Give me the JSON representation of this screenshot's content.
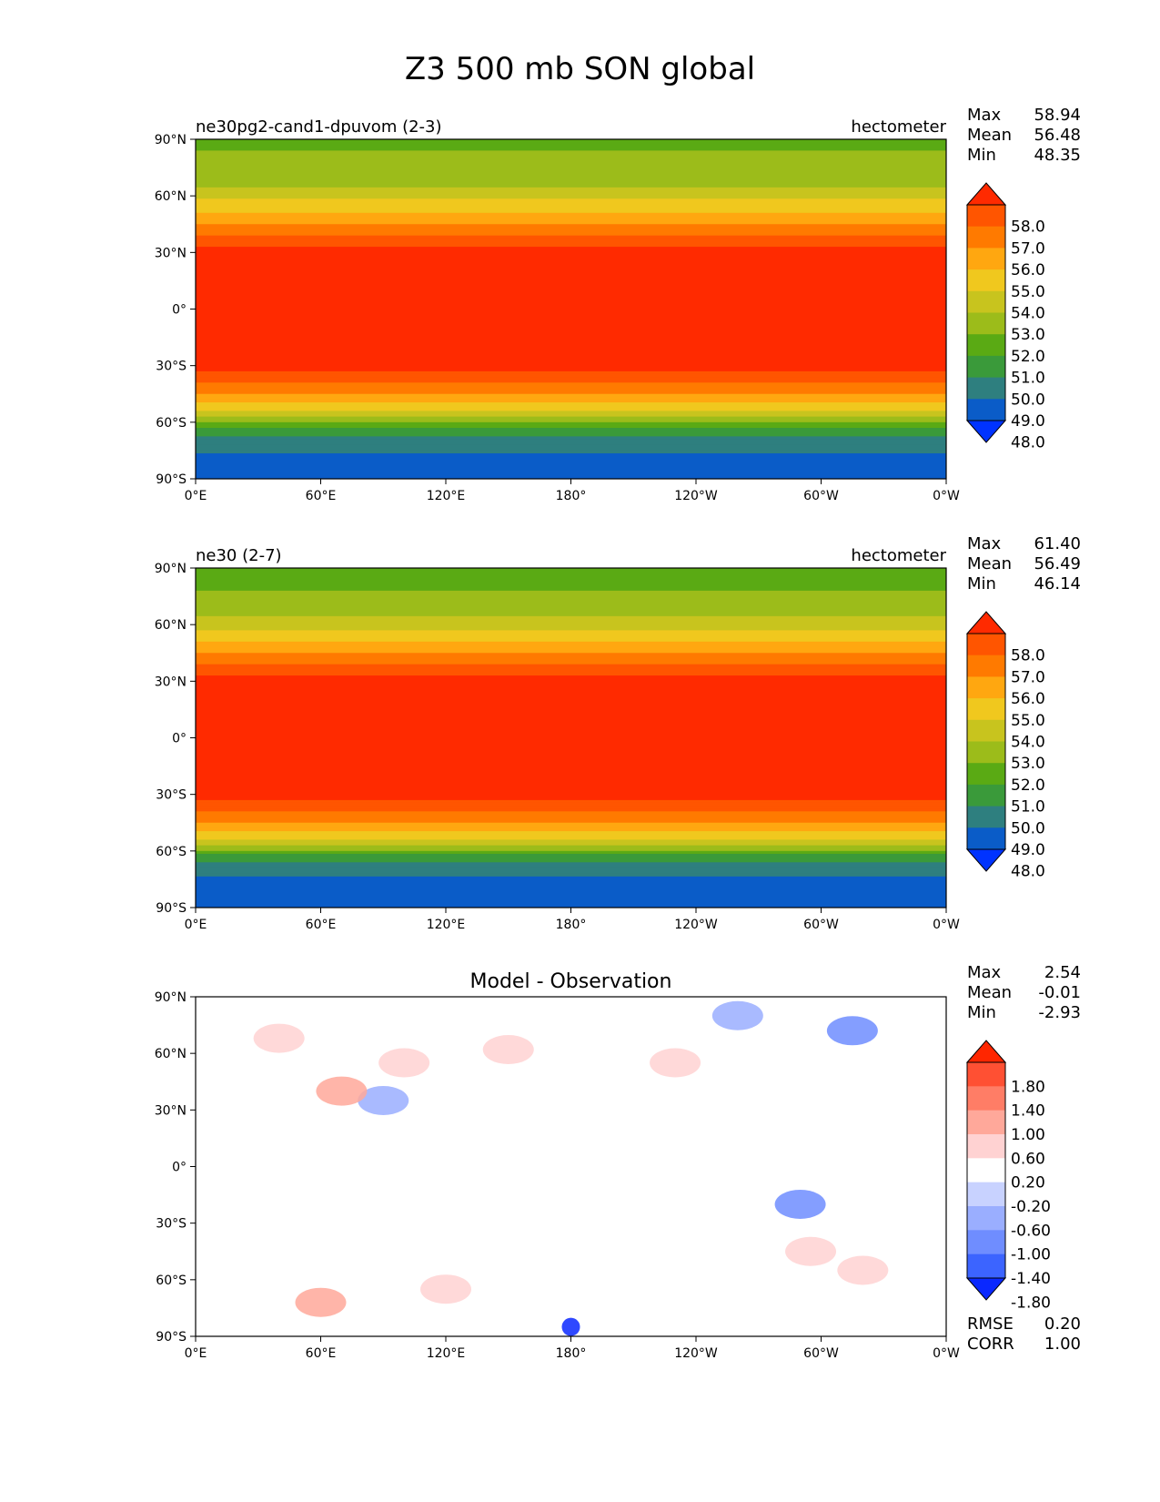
{
  "title": "Z3 500 mb SON global",
  "longitude_ticks": [
    "0°E",
    "60°E",
    "120°E",
    "180°",
    "120°W",
    "60°W",
    "0°W"
  ],
  "latitude_ticks": [
    "90°N",
    "60°N",
    "30°N",
    "0°",
    "30°S",
    "60°S",
    "90°S"
  ],
  "colors": {
    "model_levels": [
      "#0033ff",
      "#0a5cc8",
      "#2e7f7f",
      "#3a9a3a",
      "#5aaa14",
      "#9cbc1a",
      "#c8c41e",
      "#f0c81e",
      "#ffa710",
      "#ff7a00",
      "#ff5500",
      "#ff2a00"
    ],
    "diff_levels": [
      "#0a28ff",
      "#3c64ff",
      "#6f8dff",
      "#9aaeff",
      "#c8d2ff",
      "#ffffff",
      "#ffd2d2",
      "#ffa89a",
      "#ff7d66",
      "#ff5033",
      "#ff2600"
    ]
  },
  "chart_data": [
    {
      "type": "heatmap",
      "title": "ne30pg2-cand1-dpuvom (2-3)",
      "units": "hectometer",
      "xlim": [
        0,
        360
      ],
      "ylim": [
        -90,
        90
      ],
      "stats": [
        {
          "label": "Max",
          "value": "58.94"
        },
        {
          "label": "Mean",
          "value": "56.48"
        },
        {
          "label": "Min",
          "value": "48.35"
        }
      ],
      "colorbar": {
        "levels": [
          48.0,
          49.0,
          50.0,
          51.0,
          52.0,
          53.0,
          54.0,
          55.0,
          56.0,
          57.0,
          58.0
        ],
        "tick_labels": [
          "58.0",
          "57.0",
          "56.0",
          "55.0",
          "54.0",
          "53.0",
          "52.0",
          "51.0",
          "50.0",
          "49.0",
          "48.0"
        ],
        "extend": "both"
      },
      "zonal_profile": {
        "lat": [
          90,
          75,
          65,
          55,
          45,
          38,
          32,
          25,
          0,
          -25,
          -32,
          -38,
          -45,
          -52,
          -58,
          -64,
          -70,
          -78,
          -90
        ],
        "value": [
          51.8,
          52.3,
          53.0,
          54.5,
          56.0,
          57.3,
          58.2,
          58.5,
          58.6,
          58.5,
          58.1,
          57.2,
          56.0,
          54.5,
          52.5,
          50.5,
          49.6,
          48.8,
          48.6
        ]
      }
    },
    {
      "type": "heatmap",
      "title": "ne30 (2-7)",
      "units": "hectometer",
      "xlim": [
        0,
        360
      ],
      "ylim": [
        -90,
        90
      ],
      "stats": [
        {
          "label": "Max",
          "value": "61.40"
        },
        {
          "label": "Mean",
          "value": "56.49"
        },
        {
          "label": "Min",
          "value": "46.14"
        }
      ],
      "colorbar": {
        "levels": [
          48.0,
          49.0,
          50.0,
          51.0,
          52.0,
          53.0,
          54.0,
          55.0,
          56.0,
          57.0,
          58.0
        ],
        "tick_labels": [
          "58.0",
          "57.0",
          "56.0",
          "55.0",
          "54.0",
          "53.0",
          "52.0",
          "51.0",
          "50.0",
          "49.0",
          "48.0"
        ],
        "extend": "both"
      },
      "zonal_profile": {
        "lat": [
          90,
          75,
          65,
          55,
          45,
          38,
          32,
          25,
          0,
          -25,
          -32,
          -38,
          -45,
          -52,
          -58,
          -64,
          -70,
          -78,
          -90
        ],
        "value": [
          51.6,
          52.1,
          52.9,
          54.4,
          55.9,
          57.2,
          58.2,
          58.5,
          58.6,
          58.5,
          58.1,
          57.2,
          56.0,
          54.5,
          52.5,
          50.3,
          49.3,
          48.5,
          48.3
        ]
      }
    },
    {
      "type": "heatmap",
      "title": "Model - Observation",
      "units": "",
      "xlim": [
        0,
        360
      ],
      "ylim": [
        -90,
        90
      ],
      "stats": [
        {
          "label": "Max",
          "value": "2.54"
        },
        {
          "label": "Mean",
          "value": "-0.01"
        },
        {
          "label": "Min",
          "value": "-2.93"
        }
      ],
      "colorbar": {
        "levels": [
          -1.8,
          -1.4,
          -1.0,
          -0.6,
          -0.2,
          0.2,
          0.6,
          1.0,
          1.4,
          1.8
        ],
        "tick_labels": [
          "1.80",
          "1.40",
          "1.00",
          "0.60",
          "0.20",
          "-0.20",
          "-0.60",
          "-1.00",
          "-1.40",
          "-1.80"
        ],
        "extend": "both"
      },
      "metrics": [
        {
          "label": "RMSE",
          "value": "0.20"
        },
        {
          "label": "CORR",
          "value": "1.00"
        }
      ],
      "anomalies": [
        {
          "lon": 40,
          "lat": 68,
          "value": 0.4
        },
        {
          "lon": 100,
          "lat": 55,
          "value": 0.3
        },
        {
          "lon": 150,
          "lat": 62,
          "value": 0.3
        },
        {
          "lon": 230,
          "lat": 55,
          "value": 0.3
        },
        {
          "lon": 260,
          "lat": 80,
          "value": -0.7
        },
        {
          "lon": 315,
          "lat": 72,
          "value": -1.2
        },
        {
          "lon": 90,
          "lat": 35,
          "value": -1.0
        },
        {
          "lon": 70,
          "lat": 40,
          "value": 0.8
        },
        {
          "lon": 290,
          "lat": -20,
          "value": -1.4
        },
        {
          "lon": 295,
          "lat": -45,
          "value": 0.3
        },
        {
          "lon": 320,
          "lat": -55,
          "value": 0.3
        },
        {
          "lon": 120,
          "lat": -65,
          "value": 0.4
        },
        {
          "lon": 60,
          "lat": -72,
          "value": 0.7
        },
        {
          "lon": 180,
          "lat": -85,
          "value": -2.0
        }
      ]
    }
  ]
}
